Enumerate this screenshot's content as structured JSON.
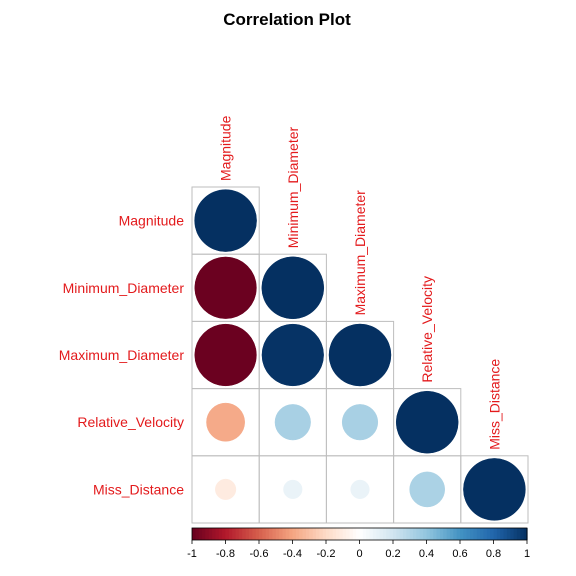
{
  "chart_data": {
    "type": "heatmap",
    "title": "Correlation Plot",
    "variables": [
      "Magnitude",
      "Minimum_Diameter",
      "Maximum_Diameter",
      "Relative_Velocity",
      "Miss_Distance"
    ],
    "matrix": [
      [
        1.0,
        -0.99,
        -0.99,
        -0.38,
        -0.11
      ],
      [
        -0.99,
        1.0,
        0.99,
        0.33,
        0.09
      ],
      [
        -0.99,
        0.99,
        1.0,
        0.33,
        0.09
      ],
      [
        -0.38,
        0.33,
        0.33,
        1.0,
        0.32
      ],
      [
        -0.11,
        0.09,
        0.09,
        0.32,
        1.0
      ]
    ],
    "layout": "lower-triangle",
    "colorbar": {
      "range": [
        -1,
        1
      ],
      "ticks": [
        "-1",
        "-0.8",
        "-0.6",
        "-0.4",
        "-0.2",
        "0",
        "0.2",
        "0.4",
        "0.6",
        "0.8",
        "1"
      ],
      "placement": "bottom"
    },
    "colors": {
      "negative": "#67001f",
      "neutral": "#ffffff",
      "positive": "#053061",
      "label": "#e31a1c",
      "grid": "#bebebe"
    }
  }
}
